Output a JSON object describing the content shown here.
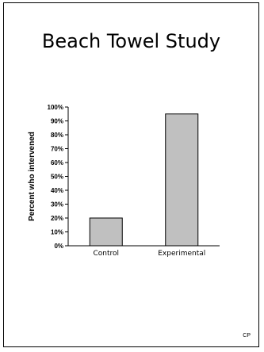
{
  "slide": {
    "title": "Beach Towel Study",
    "footer": "CP"
  },
  "chart_data": {
    "type": "bar",
    "categories": [
      "Control",
      "Experimental"
    ],
    "values": [
      20,
      95
    ],
    "ylabel": "Percent who intervened",
    "xlabel": "",
    "ylim": [
      0,
      100
    ],
    "yticks": [
      "0%",
      "10%",
      "20%",
      "30%",
      "40%",
      "50%",
      "60%",
      "70%",
      "80%",
      "90%",
      "100%"
    ],
    "bar_color": "#c0c0c0",
    "grid": false
  }
}
